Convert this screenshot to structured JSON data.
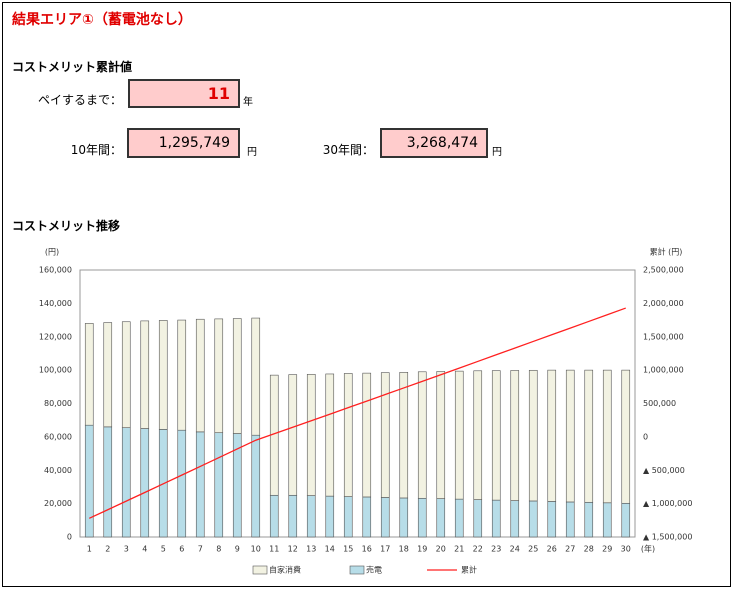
{
  "header": {
    "title": "結果エリア①（蓄電池なし）"
  },
  "summary": {
    "heading": "コストメリット累計値",
    "payback": {
      "label": "ペイするまで：",
      "value": "11",
      "unit": "年"
    },
    "ten_years": {
      "label": "10年間：",
      "value": "1,295,749",
      "unit": "円"
    },
    "thirty_years": {
      "label": "30年間：",
      "value": "3,268,474",
      "unit": "円"
    }
  },
  "chart_heading": "コストメリット推移",
  "chart_data": {
    "type": "bar",
    "y_label": "(円)",
    "y2_label": "累計 (円)",
    "x_label": "(年)",
    "categories": [
      "1",
      "2",
      "3",
      "4",
      "5",
      "6",
      "7",
      "8",
      "9",
      "10",
      "11",
      "12",
      "13",
      "14",
      "15",
      "16",
      "17",
      "18",
      "19",
      "20",
      "21",
      "22",
      "23",
      "24",
      "25",
      "26",
      "27",
      "28",
      "29",
      "30"
    ],
    "series": [
      {
        "name": "自家消費",
        "type": "bar",
        "color": "#f2f2e2",
        "values": [
          61000,
          62500,
          63500,
          64500,
          65300,
          66000,
          67500,
          68200,
          68900,
          70200,
          72000,
          72300,
          72700,
          73200,
          73800,
          74200,
          74800,
          75300,
          75800,
          76200,
          76700,
          77200,
          77600,
          78000,
          78300,
          78700,
          79000,
          79200,
          79500,
          79800
        ]
      },
      {
        "name": "売電",
        "type": "bar",
        "color": "#b7dde8",
        "values": [
          67000,
          66000,
          65500,
          65000,
          64500,
          64000,
          63000,
          62500,
          62000,
          61000,
          25000,
          25000,
          24800,
          24500,
          24200,
          24000,
          23700,
          23400,
          23200,
          23000,
          22700,
          22400,
          22100,
          21800,
          21600,
          21300,
          21000,
          20800,
          20500,
          20200
        ]
      },
      {
        "name": "累計",
        "type": "line",
        "axis": "y2",
        "color": "#ff2020",
        "values": [
          -1220000,
          -1091500,
          -962500,
          -833000,
          -703200,
          -573200,
          -442700,
          -312000,
          -181100,
          -49900,
          47100,
          144400,
          241900,
          339600,
          437600,
          535800,
          634300,
          733000,
          832000,
          931200,
          1030600,
          1130200,
          1229900,
          1329700,
          1429600,
          1529600,
          1629600,
          1729600,
          1829600,
          1929600
        ]
      }
    ],
    "ylim": [
      0,
      160000
    ],
    "yticks": [
      0,
      {
        "value": 20000,
        "label": "20,000"
      },
      {
        "value": 40000,
        "label": "40,000"
      },
      {
        "value": 60000,
        "label": "60,000"
      },
      {
        "value": 80000,
        "label": "80,000"
      },
      {
        "value": 100000,
        "label": "100,000"
      },
      {
        "value": 120000,
        "label": "120,000"
      },
      {
        "value": 140000,
        "label": "140,000"
      },
      {
        "value": 160000,
        "label": "160,000"
      }
    ],
    "y2lim": [
      -1500000,
      2500000
    ],
    "y2ticks": [
      {
        "value": -1500000,
        "label": "▲ 1,500,000"
      },
      {
        "value": -1000000,
        "label": "▲ 1,000,000"
      },
      {
        "value": -500000,
        "label": "▲ 500,000"
      },
      0,
      {
        "value": 500000,
        "label": "500,000"
      },
      {
        "value": 1000000,
        "label": "1,000,000"
      },
      {
        "value": 1500000,
        "label": "1,500,000"
      },
      {
        "value": 2000000,
        "label": "2,000,000"
      },
      {
        "value": 2500000,
        "label": "2,500,000"
      }
    ],
    "grid": false,
    "legend": "bottom"
  }
}
